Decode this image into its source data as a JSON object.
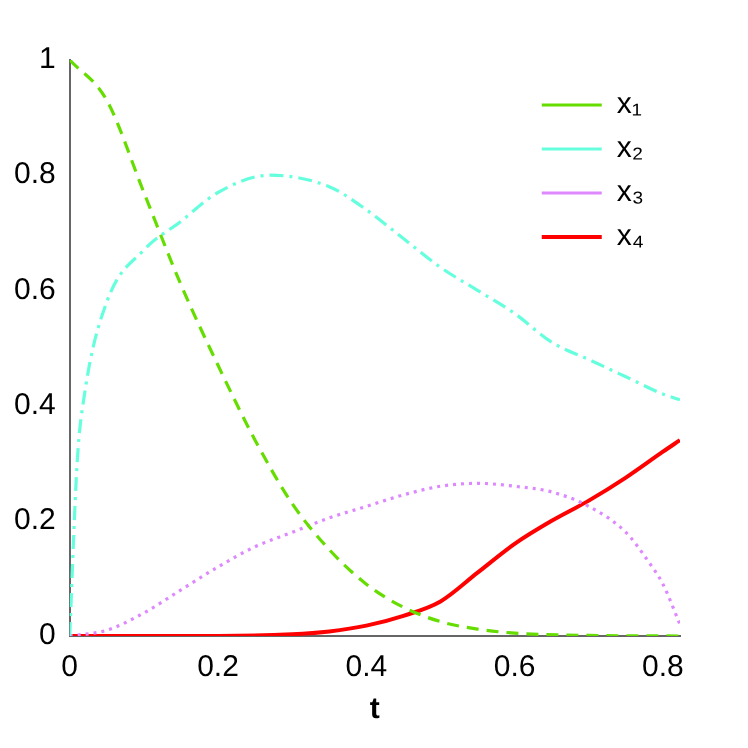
{
  "chart_data": {
    "type": "line",
    "xlabel": "t",
    "xlim": [
      0,
      0.823
    ],
    "ylim": [
      0,
      1
    ],
    "xticks": [
      0,
      0.2,
      0.4,
      0.6,
      0.8
    ],
    "yticks": [
      0,
      0.2,
      0.4,
      0.6,
      0.8,
      1
    ],
    "grid": false,
    "legend": "top right",
    "marker": "none",
    "series": [
      {
        "name": "x₁",
        "color": "#66dd00",
        "line_style": "dashed",
        "x": [
          0,
          0.05,
          0.1,
          0.15,
          0.2,
          0.25,
          0.3,
          0.35,
          0.4,
          0.45,
          0.5,
          0.55,
          0.6,
          0.7,
          0.823
        ],
        "values": [
          1,
          0.93,
          0.77,
          0.61,
          0.47,
          0.34,
          0.23,
          0.15,
          0.09,
          0.05,
          0.025,
          0.012,
          0.005,
          0.001,
          0
        ]
      },
      {
        "name": "x₂",
        "color": "#66ffdd",
        "line_style": "dashdot",
        "x": [
          0,
          0.01,
          0.02,
          0.05,
          0.1,
          0.15,
          0.2,
          0.27,
          0.35,
          0.4,
          0.45,
          0.5,
          0.55,
          0.6,
          0.65,
          0.7,
          0.75,
          0.8,
          0.823
        ],
        "values": [
          0,
          0.3,
          0.42,
          0.58,
          0.67,
          0.72,
          0.77,
          0.8,
          0.78,
          0.74,
          0.69,
          0.64,
          0.6,
          0.56,
          0.51,
          0.48,
          0.45,
          0.42,
          0.41
        ]
      },
      {
        "name": "x₃",
        "color": "#dd88ff",
        "line_style": "dotted",
        "x": [
          0,
          0.05,
          0.1,
          0.15,
          0.2,
          0.25,
          0.3,
          0.35,
          0.4,
          0.45,
          0.5,
          0.55,
          0.6,
          0.65,
          0.7,
          0.75,
          0.78,
          0.8,
          0.823
        ],
        "values": [
          0,
          0.01,
          0.04,
          0.08,
          0.12,
          0.155,
          0.18,
          0.205,
          0.225,
          0.245,
          0.26,
          0.265,
          0.26,
          0.25,
          0.225,
          0.18,
          0.13,
          0.09,
          0.02
        ]
      },
      {
        "name": "x₄",
        "color": "#ff0000",
        "line_style": "solid",
        "x": [
          0,
          0.2,
          0.3,
          0.35,
          0.4,
          0.45,
          0.5,
          0.55,
          0.6,
          0.65,
          0.7,
          0.75,
          0.8,
          0.823
        ],
        "values": [
          0,
          0,
          0.003,
          0.008,
          0.018,
          0.035,
          0.06,
          0.11,
          0.16,
          0.2,
          0.235,
          0.275,
          0.32,
          0.34
        ]
      }
    ]
  }
}
